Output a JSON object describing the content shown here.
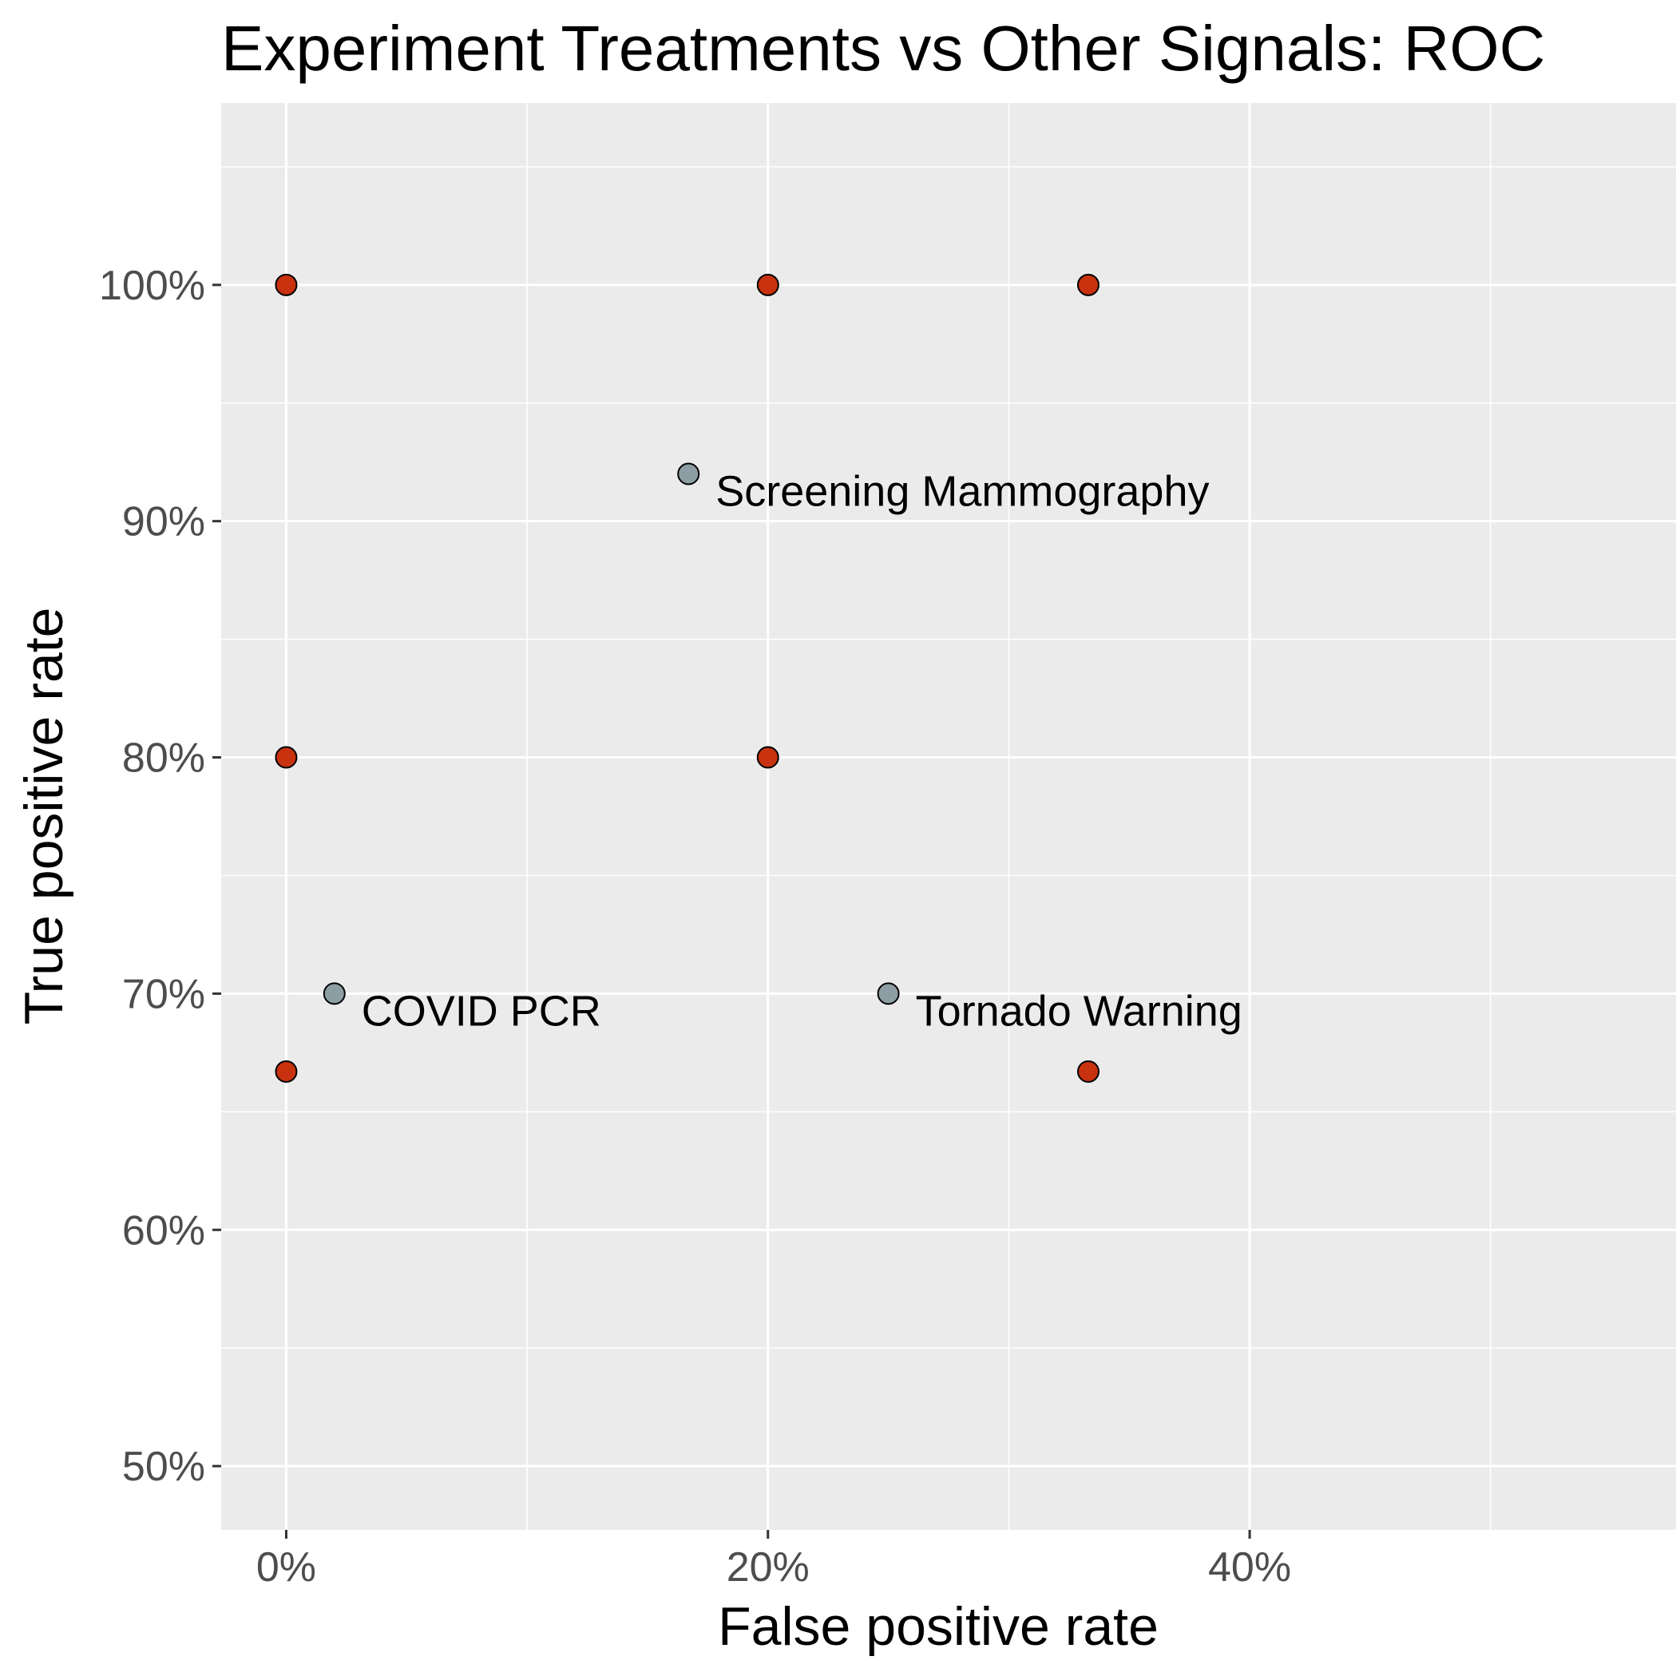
{
  "chart_data": {
    "type": "scatter",
    "title": "Experiment Treatments vs Other Signals: ROC",
    "xlabel": "False positive rate",
    "ylabel": "True positive rate",
    "xlim": [
      -2.7,
      57.7
    ],
    "ylim": [
      47.3,
      107.7
    ],
    "x_ticks": [
      0,
      20,
      40
    ],
    "x_tick_labels": [
      "0%",
      "20%",
      "40%"
    ],
    "x_minor_ticks": [
      10,
      30,
      50
    ],
    "y_ticks": [
      50,
      60,
      70,
      80,
      90,
      100
    ],
    "y_tick_labels": [
      "50%",
      "60%",
      "70%",
      "80%",
      "90%",
      "100%"
    ],
    "y_minor_ticks": [
      55,
      65,
      75,
      85,
      95,
      105
    ],
    "grid": true,
    "panel_color": "#ebebeb",
    "grid_color": "#ffffff",
    "series": [
      {
        "color": "#c8320f",
        "points": [
          {
            "x": 0,
            "y": 100
          },
          {
            "x": 20,
            "y": 100
          },
          {
            "x": 33.3,
            "y": 100
          },
          {
            "x": 0,
            "y": 80
          },
          {
            "x": 20,
            "y": 80
          },
          {
            "x": 0,
            "y": 66.7
          },
          {
            "x": 33.3,
            "y": 66.7
          }
        ]
      },
      {
        "color": "#8c9ea3",
        "points": [
          {
            "x": 16.7,
            "y": 92,
            "label": "Screening Mammography"
          },
          {
            "x": 2,
            "y": 70,
            "label": "COVID PCR"
          },
          {
            "x": 25,
            "y": 70,
            "label": "Tornado Warning"
          }
        ]
      }
    ]
  }
}
